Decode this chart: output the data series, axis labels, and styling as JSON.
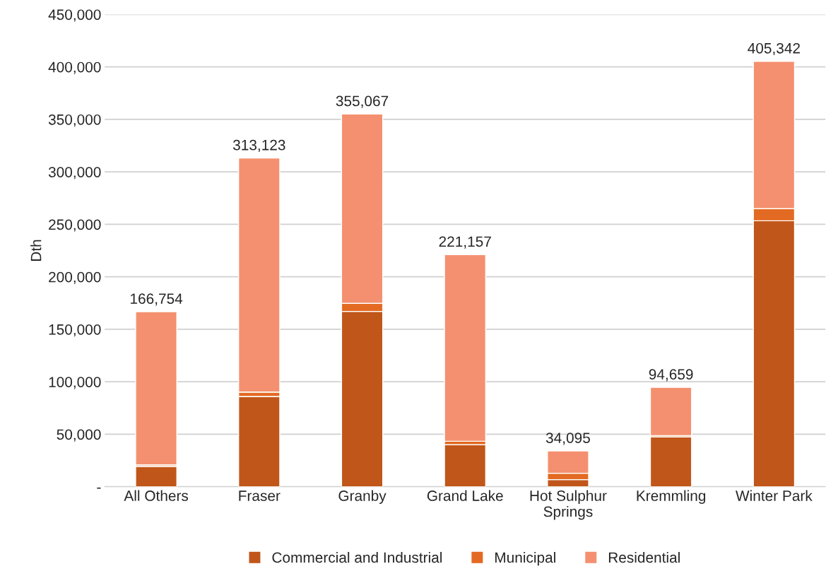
{
  "chart_data": {
    "type": "bar",
    "ylabel": "Dth",
    "stacked": true,
    "categories": [
      "All Others",
      "Fraser",
      "Granby",
      "Grand Lake",
      "Hot Sulphur\nSprings",
      "Kremmling",
      "Winter Park"
    ],
    "series": [
      {
        "name": "Commercial and Industrial",
        "color": "#c0561a",
        "values": [
          19300,
          86000,
          167000,
          40000,
          6800,
          47300,
          253400
        ]
      },
      {
        "name": "Municipal",
        "color": "#e36a22",
        "values": [
          1500,
          4200,
          7700,
          3300,
          6000,
          1300,
          11500
        ]
      },
      {
        "name": "Residential",
        "color": "#f4906f",
        "values": [
          145954,
          222923,
          180367,
          177857,
          21295,
          46059,
          140442
        ]
      }
    ],
    "totals": [
      "166,754",
      "313,123",
      "355,067",
      "221,157",
      "34,095",
      "94,659",
      "405,342"
    ],
    "ylim": [
      0,
      450000
    ],
    "yticks": [
      {
        "value": 0,
        "label": "-"
      },
      {
        "value": 50000,
        "label": "50,000"
      },
      {
        "value": 100000,
        "label": "100,000"
      },
      {
        "value": 150000,
        "label": "150,000"
      },
      {
        "value": 200000,
        "label": "200,000"
      },
      {
        "value": 250000,
        "label": "250,000"
      },
      {
        "value": 300000,
        "label": "300,000"
      },
      {
        "value": 350000,
        "label": "350,000"
      },
      {
        "value": 400000,
        "label": "400,000"
      },
      {
        "value": 450000,
        "label": "450,000"
      }
    ],
    "grid": "y",
    "legend": "bottom"
  }
}
